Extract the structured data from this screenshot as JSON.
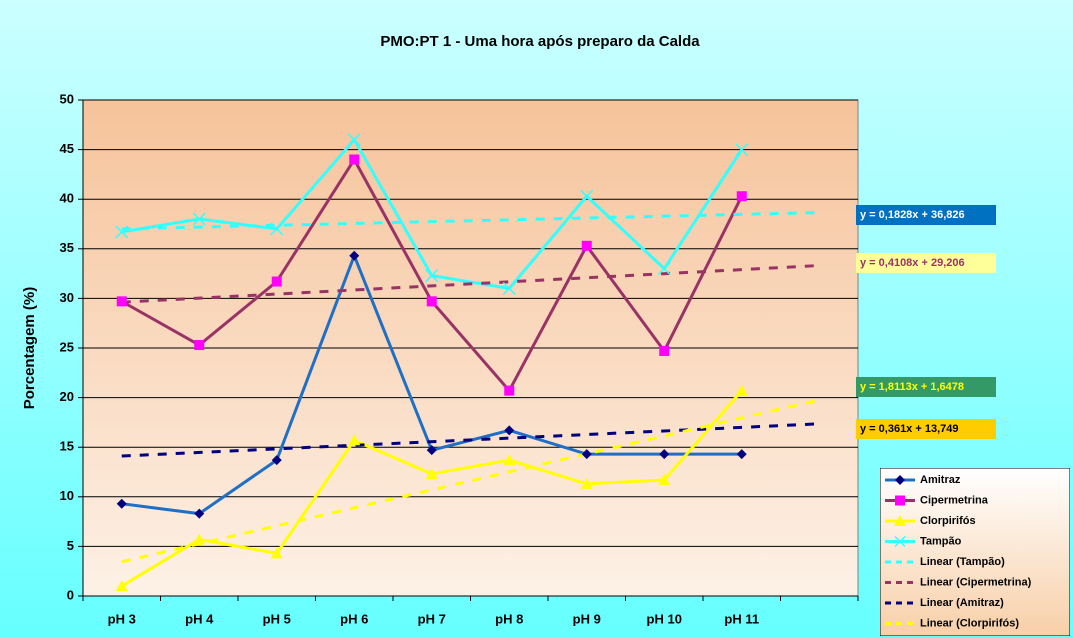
{
  "chart_data": {
    "type": "line",
    "title": "PMO:PT 1 - Uma hora após preparo da Calda",
    "y_label": "Porcentagem (%)",
    "categories": [
      "pH  3",
      "pH  4",
      "pH  5",
      "pH  6",
      "pH  7",
      "pH  8",
      "pH  9",
      "pH 10",
      "pH 11",
      null
    ],
    "ylim": [
      0,
      50
    ],
    "yticks": [
      0,
      5,
      10,
      15,
      20,
      25,
      30,
      35,
      40,
      45,
      50
    ],
    "grid": true,
    "legend": "bottom-right",
    "series": [
      {
        "name": "Amitraz",
        "color": "#1f6fc6",
        "marker": "diamond",
        "marker_color": "#000080",
        "values": [
          9.3,
          8.3,
          13.7,
          34.3,
          14.7,
          16.7,
          14.3,
          14.3,
          14.3,
          null
        ]
      },
      {
        "name": "Cipermetrina",
        "color": "#993366",
        "marker": "square",
        "marker_color": "#ff00ff",
        "values": [
          29.7,
          25.3,
          31.7,
          44,
          29.7,
          20.7,
          35.3,
          24.7,
          40.3,
          null
        ]
      },
      {
        "name": "Clorpirifós",
        "color": "#ffff00",
        "marker": "triangle",
        "marker_color": "#ffff00",
        "values": [
          1,
          5.7,
          4.3,
          15.7,
          12.3,
          13.7,
          11.3,
          11.7,
          20.7,
          null
        ]
      },
      {
        "name": "Tampão",
        "color": "#33ffff",
        "marker": "x",
        "marker_color": "#33ffff",
        "values": [
          36.7,
          38,
          37,
          46,
          32.3,
          31,
          40.3,
          33,
          45,
          null
        ]
      }
    ],
    "trendlines": [
      {
        "name": "Linear (Tampão)",
        "color": "#33ffff",
        "slope": 0.1828,
        "intercept": 36.826,
        "label": "y = 0,1828x + 36,826",
        "label_bg": "#0070c0",
        "label_color": "#ffffff"
      },
      {
        "name": "Linear (Cipermetrina)",
        "color": "#993366",
        "slope": 0.4108,
        "intercept": 29.206,
        "label": "y = 0,4108x + 29,206",
        "label_bg": "#ffff99",
        "label_color": "#993366"
      },
      {
        "name": "Linear (Amitraz)",
        "color": "#000080",
        "slope": 0.361,
        "intercept": 13.749,
        "label": "y = 0,361x + 13,749",
        "label_bg": "#ffcc00",
        "label_color": "#000000"
      },
      {
        "name": "Linear (Clorpirifós)",
        "color": "#ffff00",
        "slope": 1.8113,
        "intercept": 1.6478,
        "label": "y = 1,8113x + 1,6478",
        "label_bg": "#339966",
        "label_color": "#ffff00"
      }
    ]
  }
}
